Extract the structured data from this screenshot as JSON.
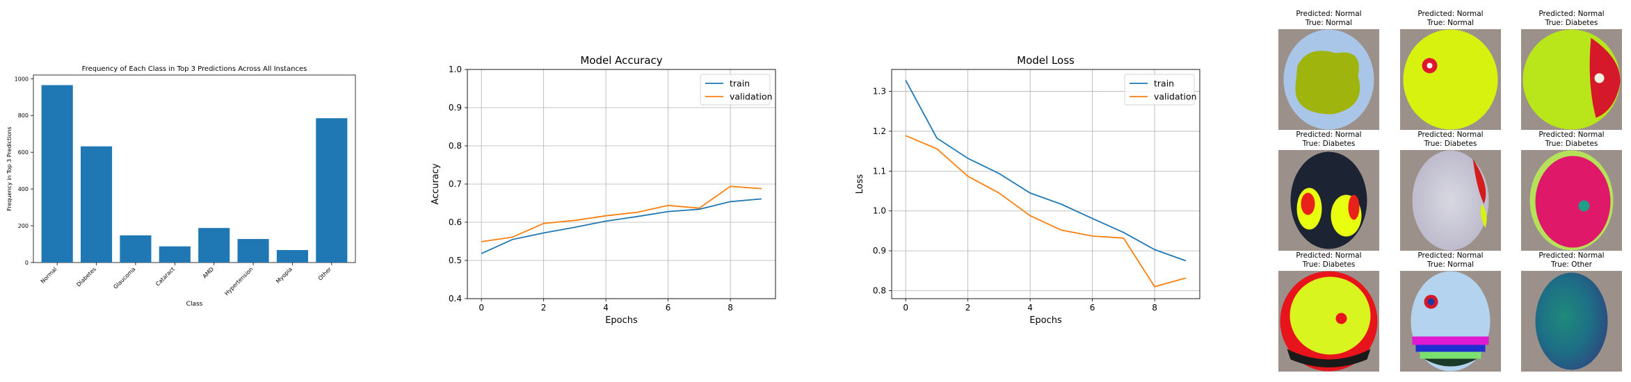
{
  "chart_data": [
    {
      "type": "bar",
      "title": "Frequency of Each Class in Top 3 Predictions Across All Instances",
      "xlabel": "Class",
      "ylabel": "Frequency in Top 3 Predictions",
      "categories": [
        "Normal",
        "Diabetes",
        "Glaucoma",
        "Cataract",
        "AMD",
        "Hypertension",
        "Myopia",
        "Other"
      ],
      "values": [
        965,
        632,
        148,
        88,
        188,
        128,
        68,
        785
      ],
      "ylim": [
        0,
        1020
      ],
      "yticks": [
        0,
        200,
        400,
        600,
        800,
        1000
      ],
      "grid": false,
      "colors": {
        "bar": "#1f77b4"
      }
    },
    {
      "type": "line",
      "title": "Model Accuracy",
      "xlabel": "Epochs",
      "ylabel": "Accuracy",
      "x": [
        0,
        1,
        2,
        3,
        4,
        5,
        6,
        7,
        8,
        9
      ],
      "series": [
        {
          "name": "train",
          "color": "#1f77b4",
          "values": [
            0.518,
            0.555,
            0.572,
            0.587,
            0.603,
            0.615,
            0.628,
            0.634,
            0.654,
            0.661
          ]
        },
        {
          "name": "validation",
          "color": "#ff7f0e",
          "values": [
            0.549,
            0.561,
            0.597,
            0.605,
            0.617,
            0.626,
            0.644,
            0.637,
            0.694,
            0.688
          ]
        }
      ],
      "xlim": [
        -0.45,
        9.45
      ],
      "ylim": [
        0.4,
        1.0
      ],
      "xticks": [
        "0",
        "2",
        "4",
        "6",
        "8"
      ],
      "yticks": [
        "0.4",
        "0.5",
        "0.6",
        "0.7",
        "0.8",
        "0.9",
        "1.0"
      ],
      "grid": true,
      "legend": "top-right"
    },
    {
      "type": "line",
      "title": "Model Loss",
      "xlabel": "Epochs",
      "ylabel": "Loss",
      "x": [
        0,
        1,
        2,
        3,
        4,
        5,
        6,
        7,
        8,
        9
      ],
      "series": [
        {
          "name": "train",
          "color": "#1f77b4",
          "values": [
            1.328,
            1.183,
            1.132,
            1.094,
            1.045,
            1.017,
            0.981,
            0.946,
            0.903,
            0.875
          ]
        },
        {
          "name": "validation",
          "color": "#ff7f0e",
          "values": [
            1.189,
            1.156,
            1.087,
            1.045,
            0.988,
            0.952,
            0.937,
            0.932,
            0.81,
            0.832
          ]
        }
      ],
      "xlim": [
        -0.45,
        9.45
      ],
      "ylim": [
        0.78,
        1.355
      ],
      "xticks": [
        "0",
        "2",
        "4",
        "6",
        "8"
      ],
      "yticks": [
        "0.8",
        "0.9",
        "1.0",
        "1.1",
        "1.2",
        "1.3"
      ],
      "grid": true,
      "legend": "top-right"
    }
  ],
  "prediction_grid": [
    {
      "predicted": "Predicted: Normal",
      "true": "True: Normal",
      "style": "olive-blob"
    },
    {
      "predicted": "Predicted: Normal",
      "true": "True: Normal",
      "style": "lime-red-spot"
    },
    {
      "predicted": "Predicted: Normal",
      "true": "True: Diabetes",
      "style": "lime-red-edge"
    },
    {
      "predicted": "Predicted: Normal",
      "true": "True: Diabetes",
      "style": "dark-yellow-red"
    },
    {
      "predicted": "Predicted: Normal",
      "true": "True: Diabetes",
      "style": "pale-grey"
    },
    {
      "predicted": "Predicted: Normal",
      "true": "True: Diabetes",
      "style": "magenta"
    },
    {
      "predicted": "Predicted: Normal",
      "true": "True: Diabetes",
      "style": "red-lime"
    },
    {
      "predicted": "Predicted: Normal",
      "true": "True: Normal",
      "style": "lightblue-magenta"
    },
    {
      "predicted": "Predicted: Normal",
      "true": "True: Other",
      "style": "teal-oval"
    }
  ],
  "colors": {
    "image_background": "#9c918a"
  }
}
